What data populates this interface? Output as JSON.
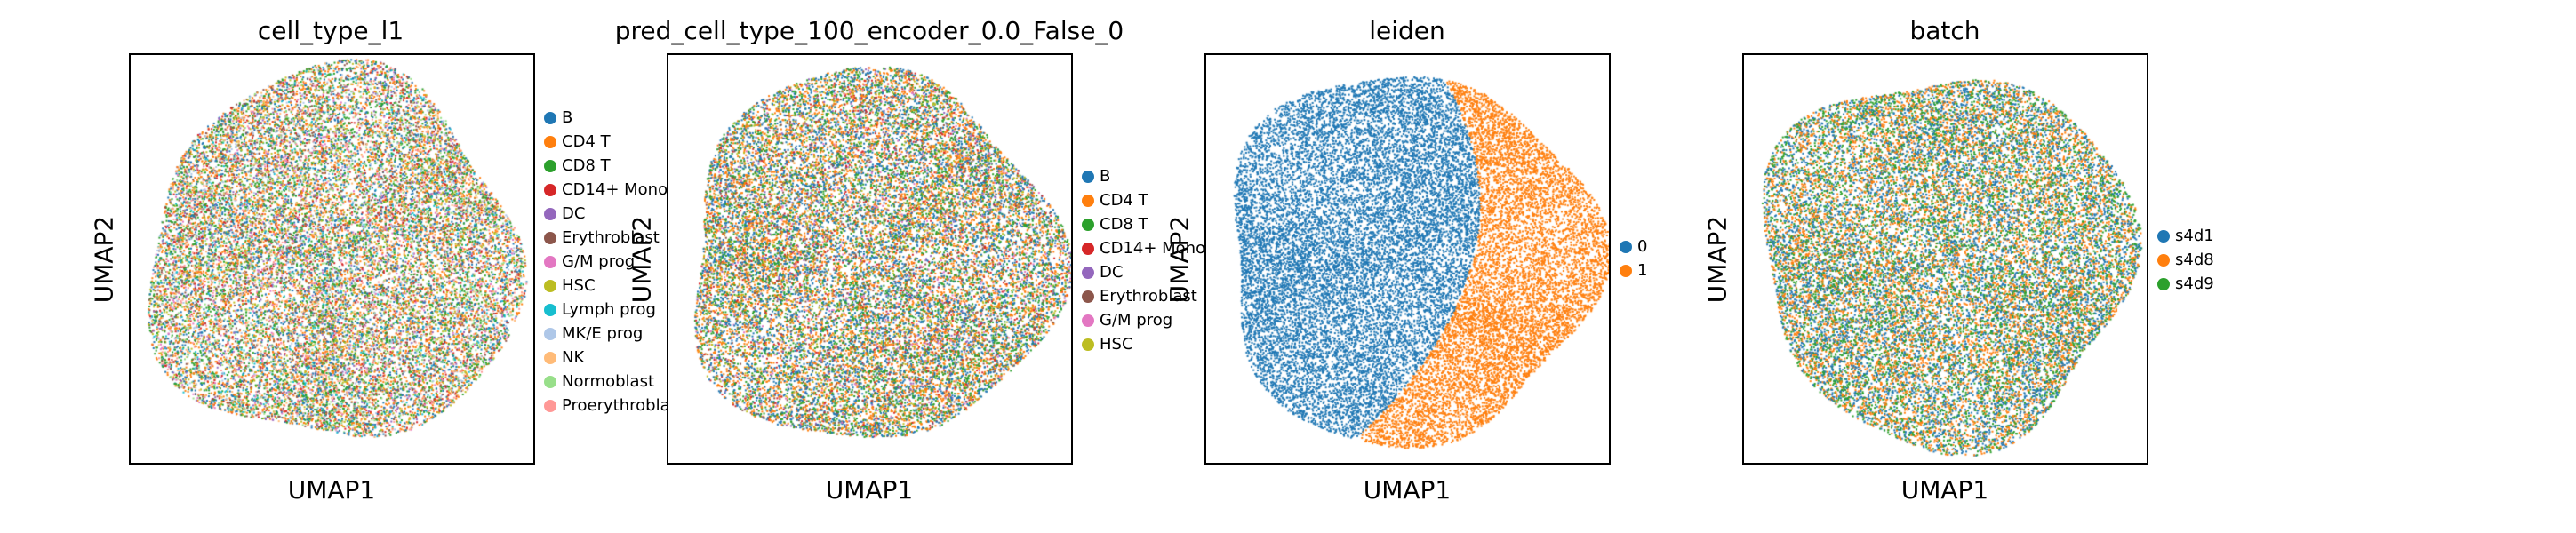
{
  "chart_data": [
    {
      "type": "scatter",
      "title": "cell_type_l1",
      "xlabel": "UMAP1",
      "ylabel": "UMAP2",
      "legend_placement": "right",
      "grid": false,
      "shape": "round",
      "legend": [
        {
          "label": "B",
          "color": "#1f77b4",
          "weight": 12
        },
        {
          "label": "CD4 T",
          "color": "#ff7f0e",
          "weight": 16
        },
        {
          "label": "CD8 T",
          "color": "#2ca02c",
          "weight": 15
        },
        {
          "label": "CD14+ Mono",
          "color": "#d62728",
          "weight": 5
        },
        {
          "label": "DC",
          "color": "#9467bd",
          "weight": 2
        },
        {
          "label": "Erythroblast",
          "color": "#8c564b",
          "weight": 6
        },
        {
          "label": "G/M prog",
          "color": "#e377c2",
          "weight": 3
        },
        {
          "label": "HSC",
          "color": "#bcbd22",
          "weight": 6
        },
        {
          "label": "Lymph prog",
          "color": "#17becf",
          "weight": 4
        },
        {
          "label": "MK/E prog",
          "color": "#aec7e8",
          "weight": 3
        },
        {
          "label": "NK",
          "color": "#ffbb78",
          "weight": 4
        },
        {
          "label": "Normoblast",
          "color": "#98df8a",
          "weight": 4
        },
        {
          "label": "Proerythroblast",
          "color": "#ff9896",
          "weight": 4
        }
      ]
    },
    {
      "type": "scatter",
      "title": "pred_cell_type_100_encoder_0.0_False_0",
      "xlabel": "UMAP1",
      "ylabel": "UMAP2",
      "legend_placement": "right",
      "grid": false,
      "shape": "round",
      "legend": [
        {
          "label": "B",
          "color": "#1f77b4",
          "weight": 28
        },
        {
          "label": "CD4 T",
          "color": "#ff7f0e",
          "weight": 30
        },
        {
          "label": "CD8 T",
          "color": "#2ca02c",
          "weight": 22
        },
        {
          "label": "CD14+ Mono",
          "color": "#d62728",
          "weight": 5
        },
        {
          "label": "DC",
          "color": "#9467bd",
          "weight": 2
        },
        {
          "label": "Erythroblast",
          "color": "#8c564b",
          "weight": 4
        },
        {
          "label": "G/M prog",
          "color": "#e377c2",
          "weight": 3
        },
        {
          "label": "HSC",
          "color": "#bcbd22",
          "weight": 6
        }
      ]
    },
    {
      "type": "scatter",
      "title": "leiden",
      "xlabel": "UMAP1",
      "ylabel": "UMAP2",
      "legend_placement": "right",
      "grid": false,
      "shape": "round",
      "split": "vertical-right",
      "legend": [
        {
          "label": "0",
          "color": "#1f77b4",
          "weight": 60
        },
        {
          "label": "1",
          "color": "#ff7f0e",
          "weight": 40
        }
      ]
    },
    {
      "type": "scatter",
      "title": "batch",
      "xlabel": "UMAP1",
      "ylabel": "UMAP2",
      "legend_placement": "right",
      "grid": false,
      "shape": "round",
      "legend": [
        {
          "label": "s4d1",
          "color": "#1f77b4",
          "weight": 34
        },
        {
          "label": "s4d8",
          "color": "#ff7f0e",
          "weight": 36
        },
        {
          "label": "s4d9",
          "color": "#2ca02c",
          "weight": 30
        }
      ]
    }
  ]
}
